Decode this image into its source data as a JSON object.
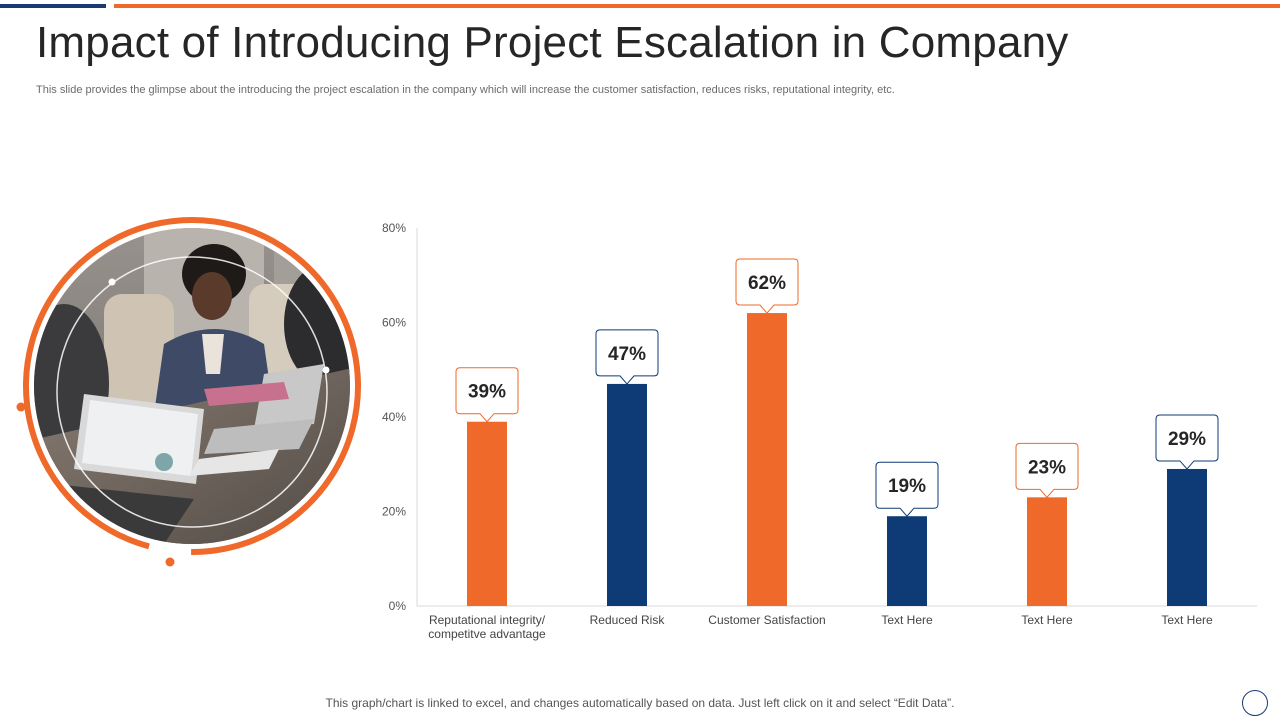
{
  "slide": {
    "title": "Impact of Introducing Project Escalation in Company",
    "subtitle": "This slide provides the glimpse about the introducing the project escalation in the company which will increase the customer satisfaction, reduces risks, reputational integrity, etc.",
    "footer_note": "This graph/chart is linked to excel,  and changes automatically based on data. Just left click on it and select “Edit Data”.",
    "accent_orange": "#ef6a2a",
    "accent_blue": "#1a3a73"
  },
  "photo": {
    "description_icon": "office-meeting-photo"
  },
  "chart_data": {
    "type": "bar",
    "categories": [
      [
        "Reputational integrity/",
        "competitve advantage"
      ],
      [
        "Reduced Risk"
      ],
      [
        "Customer Satisfaction"
      ],
      [
        "Text Here"
      ],
      [
        "Text Here"
      ],
      [
        "Text Here"
      ]
    ],
    "values": [
      39,
      47,
      62,
      19,
      23,
      29
    ],
    "value_labels": [
      "39%",
      "47%",
      "62%",
      "19%",
      "23%",
      "29%"
    ],
    "bar_colors": [
      "#ef6a2a",
      "#0e3a75",
      "#ef6a2a",
      "#0e3a75",
      "#ef6a2a",
      "#0e3a75"
    ],
    "y_ticks": [
      "0%",
      "20%",
      "40%",
      "60%",
      "80%"
    ],
    "ylim": [
      0,
      80
    ],
    "grid": false,
    "legend": "none"
  }
}
